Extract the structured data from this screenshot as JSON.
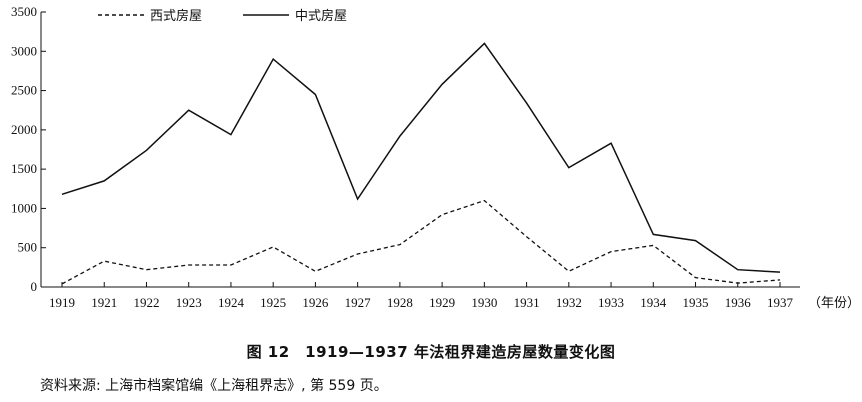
{
  "chart_data": {
    "type": "line",
    "categories": [
      "1919",
      "1921",
      "1922",
      "1923",
      "1924",
      "1925",
      "1926",
      "1927",
      "1928",
      "1929",
      "1930",
      "1931",
      "1932",
      "1933",
      "1934",
      "1935",
      "1936",
      "1937"
    ],
    "series": [
      {
        "name": "西式房屋",
        "style": "dashed",
        "color": "#111111",
        "values": [
          40,
          330,
          220,
          280,
          280,
          510,
          200,
          420,
          540,
          920,
          1100,
          640,
          200,
          450,
          530,
          120,
          50,
          90
        ]
      },
      {
        "name": "中式房屋",
        "style": "solid",
        "color": "#111111",
        "values": [
          1180,
          1350,
          1740,
          2250,
          1940,
          2900,
          2450,
          1120,
          1920,
          2580,
          3100,
          2340,
          1520,
          1830,
          670,
          590,
          220,
          190
        ]
      }
    ],
    "yticks": [
      0,
      500,
      1000,
      1500,
      2000,
      2500,
      3000,
      3500
    ],
    "ylim": [
      0,
      3500
    ],
    "x_unit": "（年份）",
    "legend_position": "top",
    "grid": false
  },
  "caption": "图 12　1919—1937 年法租界建造房屋数量变化图",
  "source": "资料来源: 上海市档案馆编《上海租界志》, 第 559 页。"
}
